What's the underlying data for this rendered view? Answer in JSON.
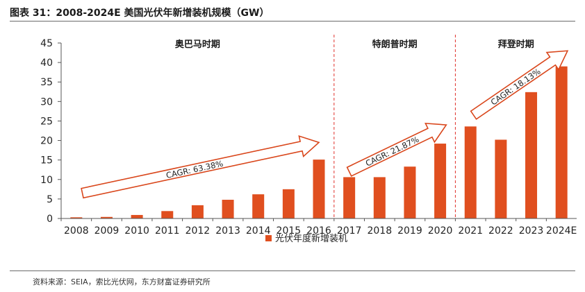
{
  "figure_title": "图表 31：2008-2024E 美国光伏年新增装机规模（GW）",
  "source": "资料来源：SEIA，索比光伏网，东方财富证券研究所",
  "colors": {
    "bar": "#E04F1F",
    "arrow_stroke": "#D9461B",
    "divider": "#E0302A",
    "axis": "#555555"
  },
  "chart_data": {
    "type": "bar",
    "title": "2008-2024E 美国光伏年新增装机规模（GW）",
    "xlabel": "",
    "ylabel": "GW",
    "ylim": [
      0,
      45
    ],
    "yticks": [
      0,
      5,
      10,
      15,
      20,
      25,
      30,
      35,
      40,
      45
    ],
    "grid": false,
    "legend_position": "bottom",
    "categories": [
      "2008",
      "2009",
      "2010",
      "2011",
      "2012",
      "2013",
      "2014",
      "2015",
      "2016",
      "2017",
      "2018",
      "2019",
      "2020",
      "2021",
      "2022",
      "2023",
      "2024E"
    ],
    "series": [
      {
        "name": "光伏年度新增装机",
        "values": [
          0.3,
          0.4,
          0.9,
          1.9,
          3.4,
          4.8,
          6.2,
          7.5,
          15.1,
          10.6,
          10.6,
          13.3,
          19.2,
          23.6,
          20.2,
          32.4,
          39.0
        ]
      }
    ],
    "periods": [
      {
        "label": "奥巴马时期",
        "start": 0,
        "end": 8
      },
      {
        "label": "特朗普时期",
        "start": 9,
        "end": 12
      },
      {
        "label": "拜登时期",
        "start": 13,
        "end": 16
      }
    ],
    "annotations": [
      {
        "text": "CAGR: 63.38%",
        "from_index": 0.2,
        "from_value": 6.5,
        "to_index": 8.0,
        "to_value": 19.5
      },
      {
        "text": "CAGR: 21.87%",
        "from_index": 9.0,
        "from_value": 12.0,
        "to_index": 12.2,
        "to_value": 24.0
      },
      {
        "text": "CAGR: 18.13%",
        "from_index": 13.1,
        "from_value": 26.5,
        "to_index": 16.2,
        "to_value": 43.0
      }
    ]
  }
}
